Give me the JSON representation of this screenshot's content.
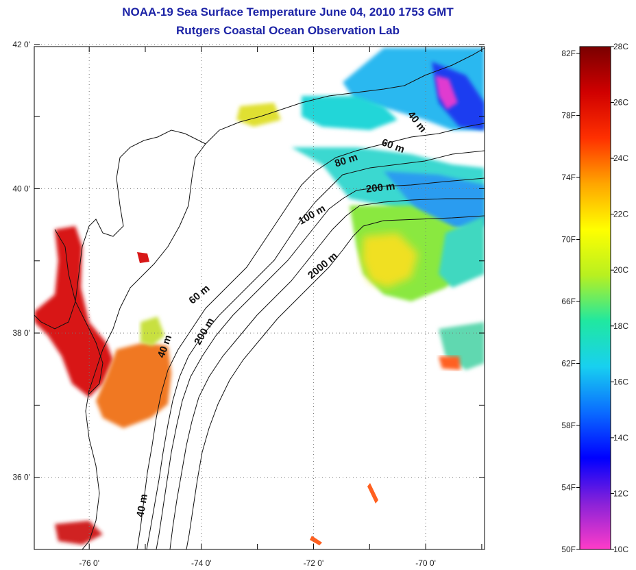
{
  "title": {
    "line1": "NOAA-19 Sea Surface Temperature June 04, 2010 1753 GMT",
    "line2": "Rutgers Coastal Ocean Observation Lab"
  },
  "map": {
    "lat_ticks": [
      {
        "label": "42 0'",
        "value": 42
      },
      {
        "label": "40 0'",
        "value": 40
      },
      {
        "label": "38 0'",
        "value": 38
      },
      {
        "label": "36 0'",
        "value": 36
      }
    ],
    "lon_ticks": [
      {
        "label": "-76 0'",
        "value": -76
      },
      {
        "label": "-74 0'",
        "value": -74
      },
      {
        "label": "-72 0'",
        "value": -72
      },
      {
        "label": "-70 0'",
        "value": -70
      }
    ],
    "extent": {
      "lon_min": -76.98,
      "lon_max": -68.95,
      "lat_min": 35.0,
      "lat_max": 41.97
    },
    "gridlines": "dotted",
    "contour_labels": [
      {
        "text": "40 m",
        "lon": -70.2,
        "lat": 40.9,
        "rotate": 52
      },
      {
        "text": "60 m",
        "lon": -70.6,
        "lat": 40.55,
        "rotate": 20
      },
      {
        "text": "80 m",
        "lon": -71.4,
        "lat": 40.35,
        "rotate": -18
      },
      {
        "text": "200 m",
        "lon": -70.8,
        "lat": 39.97,
        "rotate": -6
      },
      {
        "text": "100 m",
        "lon": -72.0,
        "lat": 39.6,
        "rotate": -30
      },
      {
        "text": "2000 m",
        "lon": -71.8,
        "lat": 38.9,
        "rotate": -40
      },
      {
        "text": "60 m",
        "lon": -74.0,
        "lat": 38.5,
        "rotate": -40
      },
      {
        "text": "200 m",
        "lon": -73.9,
        "lat": 38.0,
        "rotate": -60
      },
      {
        "text": "40 m",
        "lon": -74.6,
        "lat": 37.8,
        "rotate": -70
      },
      {
        "text": "40 m",
        "lon": -75.0,
        "lat": 35.6,
        "rotate": -80
      }
    ]
  },
  "colorbar": {
    "celsius_labels": [
      "28C",
      "26C",
      "24C",
      "22C",
      "20C",
      "18C",
      "16C",
      "14C",
      "12C",
      "10C"
    ],
    "fahrenheit_labels": [
      "82F",
      "78F",
      "74F",
      "70F",
      "66F",
      "62F",
      "58F",
      "54F",
      "50F"
    ],
    "colors": [
      "#ff3cc8",
      "#8a22d8",
      "#0000ff",
      "#0a6cff",
      "#18d0f0",
      "#20e8a0",
      "#b8f020",
      "#ffff00",
      "#ffa500",
      "#ff3000",
      "#d00000",
      "#7a0000"
    ]
  }
}
